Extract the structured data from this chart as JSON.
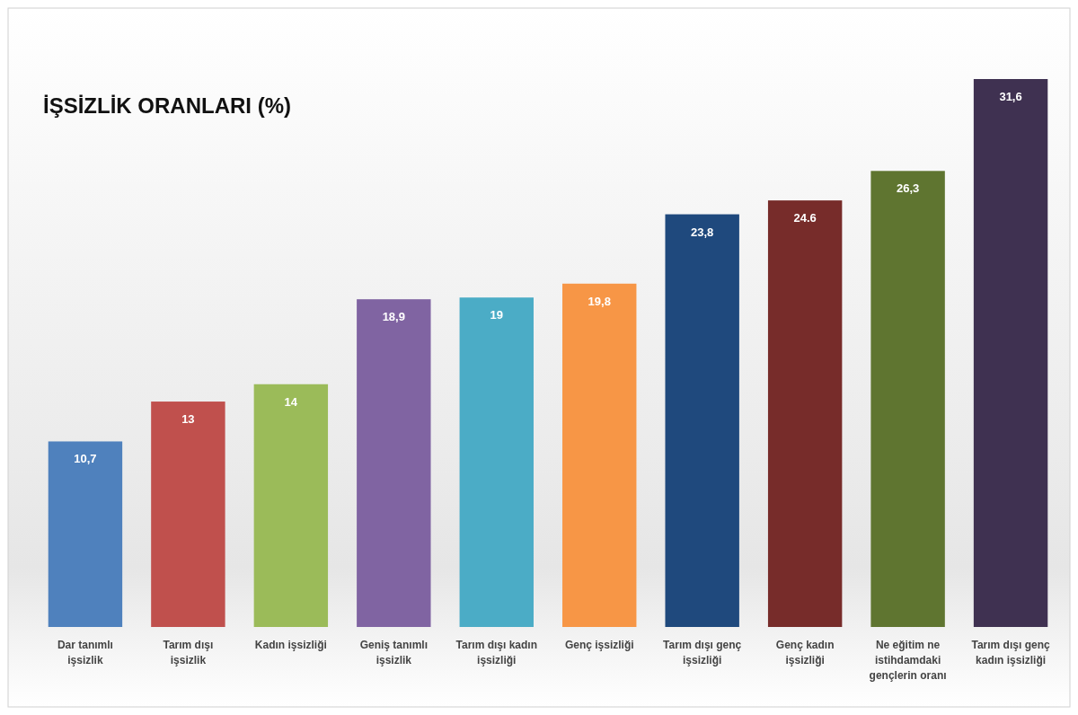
{
  "chart_data": {
    "type": "bar",
    "title": "İŞSİZLİK ORANLARI (%)",
    "categories": [
      "Dar tanımlı işsizlik",
      "Tarım dışı işsizlik",
      "Kadın işsizliği",
      "Geniş tanımlı işsizlik",
      "Tarım dışı kadın işsizliği",
      "Genç işsizliği",
      "Tarım dışı genç işsizliği",
      "Genç kadın işsizliği",
      "Ne eğitim ne istihdamdaki gençlerin oranı",
      "Tarım dışı genç kadın işsizliği"
    ],
    "values": [
      10.7,
      13,
      14,
      18.9,
      19,
      19.8,
      23.8,
      24.6,
      26.3,
      31.6
    ],
    "colors": [
      "#4f81bd",
      "#c0504d",
      "#9bbb59",
      "#8064a2",
      "#4bacc6",
      "#f79646",
      "#1f497d",
      "#772c2a",
      "#5f7530",
      "#3f3151"
    ],
    "value_labels": [
      "10,7",
      "13",
      "14",
      "18,9",
      "19",
      "19,8",
      "23,8",
      "24.6",
      "26,3",
      "31,6"
    ]
  }
}
